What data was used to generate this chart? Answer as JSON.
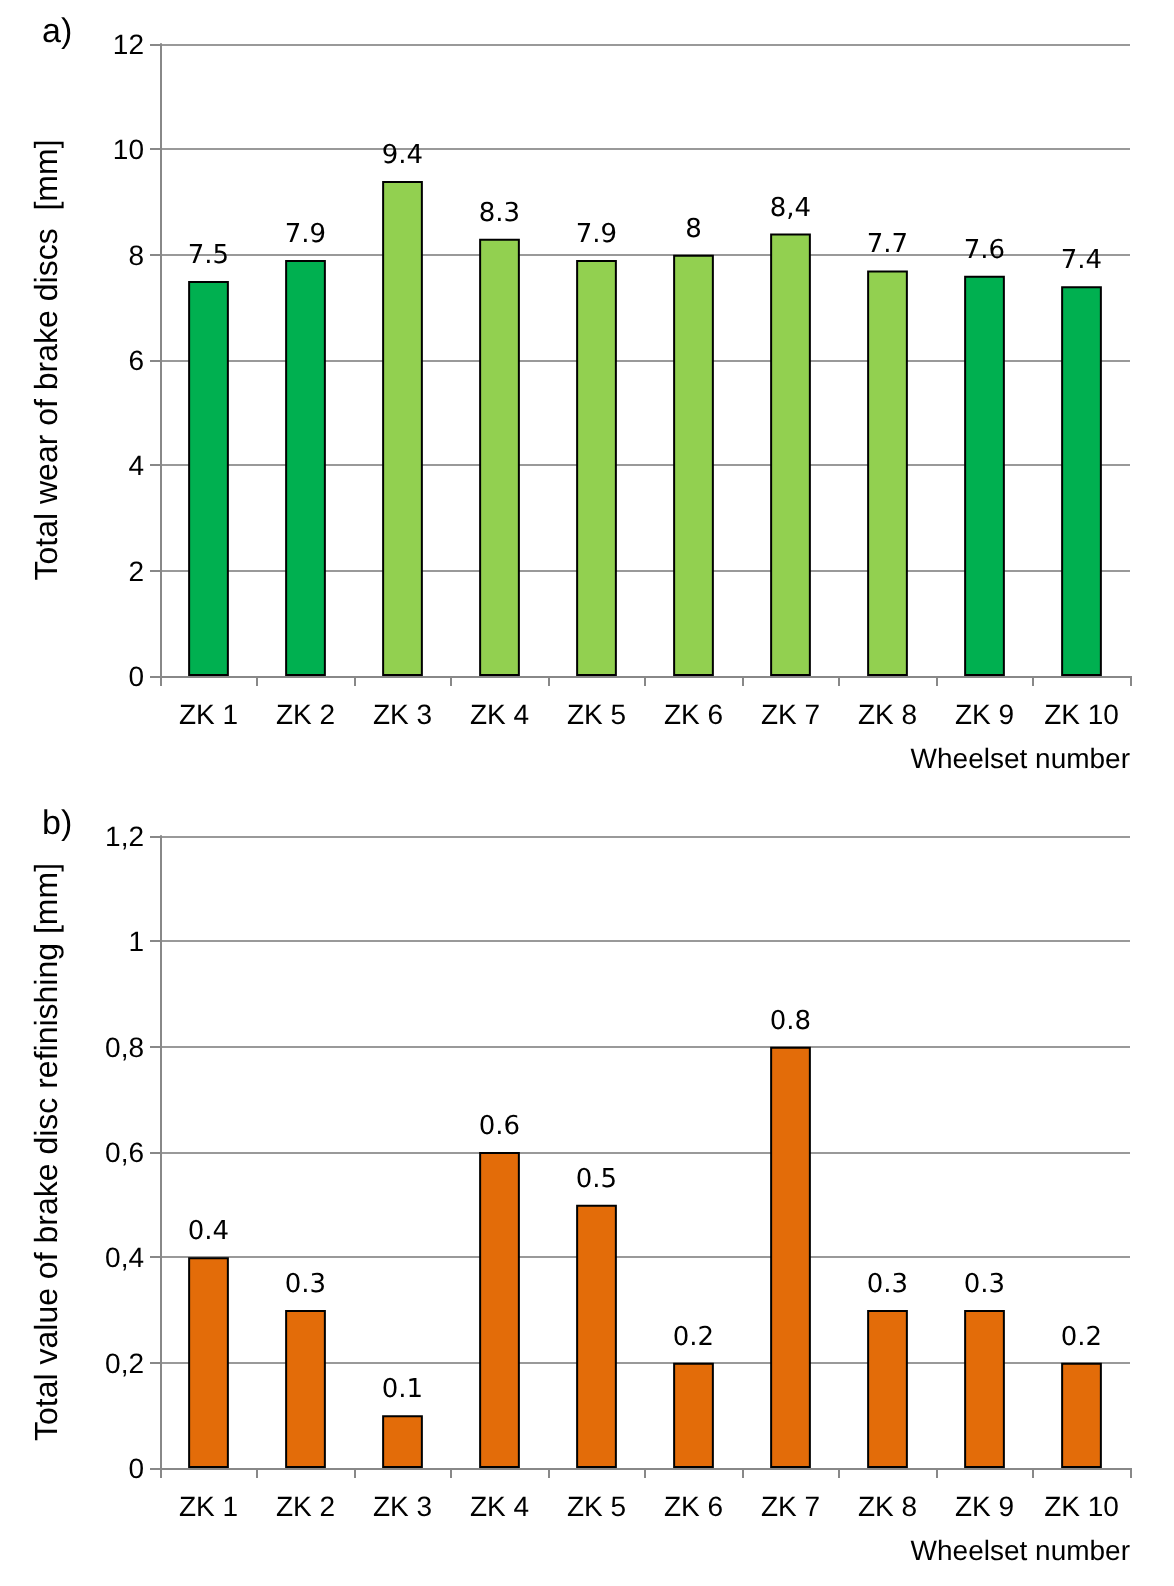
{
  "chart_data": [
    {
      "type": "bar",
      "title": "a)",
      "xlabel": "Wheelset number",
      "ylabel": "Total wear of brake discs  [mm]",
      "categories": [
        "ZK 1",
        "ZK 2",
        "ZK 3",
        "ZK 4",
        "ZK 5",
        "ZK 6",
        "ZK 7",
        "ZK 8",
        "ZK 9",
        "ZK 10"
      ],
      "values": [
        7.5,
        7.9,
        9.4,
        8.3,
        7.9,
        8,
        8.4,
        7.7,
        7.6,
        7.4
      ],
      "colors": [
        "#00b050",
        "#00b050",
        "#92d050",
        "#92d050",
        "#92d050",
        "#92d050",
        "#92d050",
        "#92d050",
        "#00b050",
        "#00b050"
      ],
      "value_labels": [
        "7.5",
        "7.9",
        "9.4",
        "8.3",
        "7.9",
        "8",
        "8,4",
        "7.7",
        "7.6",
        "7.4"
      ],
      "ylim": [
        0,
        12
      ],
      "yticks": [
        0,
        2,
        4,
        6,
        8,
        10,
        12
      ],
      "grid": "y"
    },
    {
      "type": "bar",
      "title": "b)",
      "xlabel": "Wheelset number",
      "ylabel": "Total value of brake disc refinishing [mm]",
      "categories": [
        "ZK 1",
        "ZK 2",
        "ZK 3",
        "ZK 4",
        "ZK 5",
        "ZK 6",
        "ZK 7",
        "ZK 8",
        "ZK 9",
        "ZK 10"
      ],
      "values": [
        0.4,
        0.3,
        0.1,
        0.6,
        0.5,
        0.2,
        0.8,
        0.3,
        0.3,
        0.2
      ],
      "color": "#e36c09",
      "value_labels": [
        "0.4",
        "0.3",
        "0.1",
        "0.6",
        "0.5",
        "0.2",
        "0.8",
        "0.3",
        "0.3",
        "0.2"
      ],
      "ylim": [
        0,
        1.2
      ],
      "yticks": [
        0,
        {
          "value": 0.2,
          "label": "0,2"
        },
        {
          "value": 0.4,
          "label": "0,4"
        },
        {
          "value": 0.6,
          "label": "0,6"
        },
        {
          "value": 0.8,
          "label": "0,8"
        },
        1,
        {
          "value": 1.2,
          "label": "1,2"
        }
      ],
      "grid": "y"
    }
  ]
}
